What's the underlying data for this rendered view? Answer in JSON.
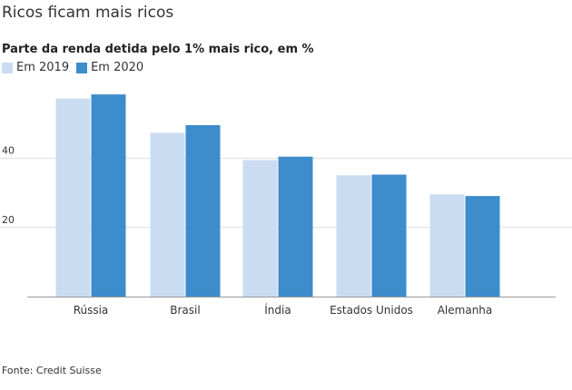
{
  "title": "Ricos ficam mais ricos",
  "subtitle": "Parte da renda detida pelo 1% mais rico, em %",
  "source": "Fonte: Credit Suisse",
  "colors": {
    "series_2019": "#c9dcf2",
    "series_2020": "#3d8ccc",
    "grid": "#dddddd",
    "axis": "#999999"
  },
  "chart_data": {
    "type": "bar",
    "title": "Ricos ficam mais ricos",
    "subtitle": "Parte da renda detida pelo 1% mais rico, em %",
    "categories": [
      "Rússia",
      "Brasil",
      "Índia",
      "Estados Unidos",
      "Alemanha"
    ],
    "series": [
      {
        "name": "Em 2019",
        "values": [
          57.3,
          47.4,
          39.5,
          35.1,
          29.6
        ]
      },
      {
        "name": "Em 2020",
        "values": [
          58.5,
          49.6,
          40.5,
          35.3,
          29.1
        ]
      }
    ],
    "yticks": [
      20,
      40
    ],
    "ylim": [
      0,
      63
    ],
    "grid": true,
    "legend_position": "top-left"
  }
}
